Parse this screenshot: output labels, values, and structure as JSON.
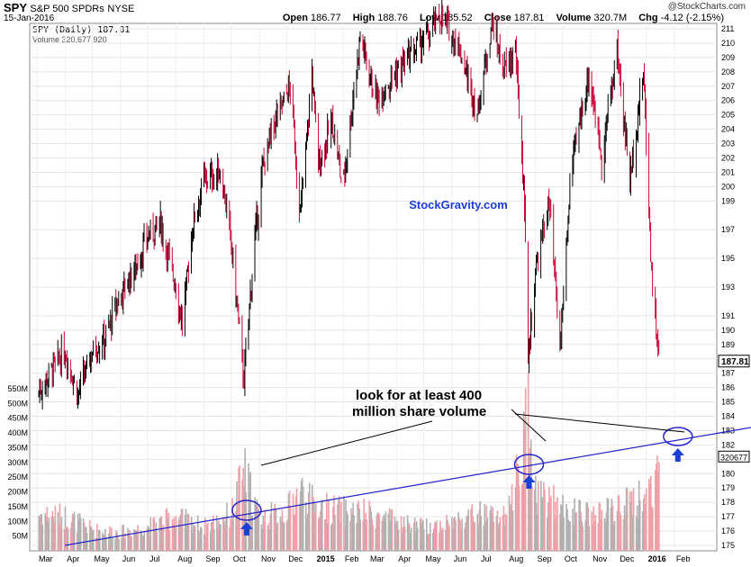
{
  "header": {
    "symbol": "SPY",
    "symbol_desc": "S&P 500 SPDRs",
    "exchange": "NYSE",
    "date": "15-Jan-2016",
    "brand": "@StockCharts.com",
    "open_label": "Open",
    "open": "186.77",
    "high_label": "High",
    "high": "188.76",
    "low_label": "Low",
    "low": "185.52",
    "close_label": "Close",
    "close": "187.81",
    "volume_label": "Volume",
    "volume": "320.7M",
    "chg_label": "Chg",
    "chg": "-4.12 (-2.15%)"
  },
  "legend": {
    "price": "SPY (Daily) 187.81",
    "volume": "Volume 320,677,920"
  },
  "watermark": "StockGravity.com",
  "annotation": {
    "line1": "look for at least 400",
    "line2": "million share volume"
  },
  "colors": {
    "up": "#000000",
    "down": "#cc0033",
    "volume_up": "#b0b0b0",
    "volume_down": "#f0a0a8",
    "trendline": "#2222cc",
    "watermark": "#1a3fd6",
    "arrow": "#1a3fd6"
  },
  "chart_data": {
    "type": "candlestick+volume",
    "price_axis": {
      "min": 175,
      "max": 211,
      "ticks": [
        "175",
        "176",
        "177",
        "178",
        "179",
        "180",
        "181",
        "182",
        "183",
        "184",
        "185",
        "186",
        "187",
        "188",
        "189",
        "190",
        "191",
        "193",
        "195",
        "197",
        "199",
        "200",
        "201",
        "202",
        "203",
        "204",
        "205",
        "206",
        "207",
        "208",
        "209",
        "210",
        "211"
      ]
    },
    "volume_axis": {
      "max": 550,
      "ticks": [
        "50M",
        "100M",
        "150M",
        "200M",
        "250M",
        "300M",
        "350M",
        "400M",
        "450M",
        "500M",
        "550M"
      ]
    },
    "x_labels": [
      "Mar",
      "Apr",
      "May",
      "Jun",
      "Jul",
      "Aug",
      "Sep",
      "Oct",
      "Nov",
      "Dec",
      "2015",
      "Feb",
      "Mar",
      "Apr",
      "May",
      "Jun",
      "Jul",
      "Aug",
      "Sep",
      "Oct",
      "Nov",
      "Dec",
      "2016",
      "Feb"
    ],
    "last_price_label": "187.81",
    "last_volume_label": "320677",
    "price_series": [
      {
        "date": "2014-03-01",
        "close": 185.5
      },
      {
        "date": "2014-03-15",
        "close": 187.0
      },
      {
        "date": "2014-04-01",
        "close": 188.5
      },
      {
        "date": "2014-04-15",
        "close": 185.5
      },
      {
        "date": "2014-05-01",
        "close": 188.5
      },
      {
        "date": "2014-05-15",
        "close": 189.5
      },
      {
        "date": "2014-06-01",
        "close": 192.5
      },
      {
        "date": "2014-06-15",
        "close": 194.0
      },
      {
        "date": "2014-07-01",
        "close": 196.5
      },
      {
        "date": "2014-07-15",
        "close": 197.5
      },
      {
        "date": "2014-08-01",
        "close": 193.0
      },
      {
        "date": "2014-08-08",
        "close": 190.5
      },
      {
        "date": "2014-08-20",
        "close": 197.5
      },
      {
        "date": "2014-09-01",
        "close": 200.5
      },
      {
        "date": "2014-09-20",
        "close": 201.0
      },
      {
        "date": "2014-10-01",
        "close": 196.0
      },
      {
        "date": "2014-10-15",
        "close": 186.5
      },
      {
        "date": "2014-10-25",
        "close": 195.0
      },
      {
        "date": "2014-11-05",
        "close": 201.5
      },
      {
        "date": "2014-11-20",
        "close": 205.0
      },
      {
        "date": "2014-12-05",
        "close": 207.0
      },
      {
        "date": "2014-12-16",
        "close": 198.0
      },
      {
        "date": "2014-12-29",
        "close": 208.0
      },
      {
        "date": "2015-01-05",
        "close": 201.5
      },
      {
        "date": "2015-01-20",
        "close": 204.5
      },
      {
        "date": "2015-02-01",
        "close": 200.0
      },
      {
        "date": "2015-02-20",
        "close": 210.5
      },
      {
        "date": "2015-03-10",
        "close": 206.0
      },
      {
        "date": "2015-03-25",
        "close": 207.5
      },
      {
        "date": "2015-04-15",
        "close": 209.0
      },
      {
        "date": "2015-05-05",
        "close": 210.5
      },
      {
        "date": "2015-05-20",
        "close": 212.0
      },
      {
        "date": "2015-06-10",
        "close": 209.5
      },
      {
        "date": "2015-06-29",
        "close": 205.0
      },
      {
        "date": "2015-07-15",
        "close": 211.5
      },
      {
        "date": "2015-07-28",
        "close": 208.0
      },
      {
        "date": "2015-08-10",
        "close": 209.5
      },
      {
        "date": "2015-08-20",
        "close": 199.0
      },
      {
        "date": "2015-08-24",
        "close": 188.0
      },
      {
        "date": "2015-09-01",
        "close": 194.0
      },
      {
        "date": "2015-09-16",
        "close": 199.0
      },
      {
        "date": "2015-09-28",
        "close": 188.5
      },
      {
        "date": "2015-10-10",
        "close": 201.0
      },
      {
        "date": "2015-10-30",
        "close": 208.0
      },
      {
        "date": "2015-11-13",
        "close": 202.0
      },
      {
        "date": "2015-11-30",
        "close": 209.5
      },
      {
        "date": "2015-12-14",
        "close": 200.5
      },
      {
        "date": "2015-12-29",
        "close": 208.0
      },
      {
        "date": "2016-01-07",
        "close": 194.0
      },
      {
        "date": "2016-01-15",
        "close": 187.81
      }
    ],
    "volume_series": [
      {
        "date": "2014-03-01",
        "volume": 140
      },
      {
        "date": "2014-04-01",
        "volume": 130
      },
      {
        "date": "2014-05-01",
        "volume": 80
      },
      {
        "date": "2014-06-01",
        "volume": 70
      },
      {
        "date": "2014-07-01",
        "volume": 90
      },
      {
        "date": "2014-08-01",
        "volume": 130
      },
      {
        "date": "2014-09-01",
        "volume": 90
      },
      {
        "date": "2014-10-01",
        "volume": 140
      },
      {
        "date": "2014-10-15",
        "volume": 300
      },
      {
        "date": "2014-11-01",
        "volume": 120
      },
      {
        "date": "2014-12-01",
        "volume": 150
      },
      {
        "date": "2014-12-16",
        "volume": 230
      },
      {
        "date": "2015-01-01",
        "volume": 170
      },
      {
        "date": "2015-02-01",
        "volume": 150
      },
      {
        "date": "2015-03-01",
        "volume": 140
      },
      {
        "date": "2015-04-01",
        "volume": 110
      },
      {
        "date": "2015-05-01",
        "volume": 90
      },
      {
        "date": "2015-06-01",
        "volume": 110
      },
      {
        "date": "2015-07-01",
        "volume": 140
      },
      {
        "date": "2015-08-01",
        "volume": 120
      },
      {
        "date": "2015-08-24",
        "volume": 510
      },
      {
        "date": "2015-09-01",
        "volume": 230
      },
      {
        "date": "2015-10-01",
        "volume": 160
      },
      {
        "date": "2015-11-01",
        "volume": 130
      },
      {
        "date": "2015-12-01",
        "volume": 160
      },
      {
        "date": "2016-01-01",
        "volume": 210
      },
      {
        "date": "2016-01-15",
        "volume": 320
      }
    ],
    "annotations": [
      {
        "type": "trendline",
        "label": "volume trendline"
      },
      {
        "type": "ellipse",
        "date": "2014-10-15",
        "label": "high-volume spike"
      },
      {
        "type": "ellipse",
        "date": "2015-08-24",
        "label": "high-volume spike"
      },
      {
        "type": "ellipse",
        "date": "2016-02-01",
        "label": "projected"
      }
    ]
  }
}
